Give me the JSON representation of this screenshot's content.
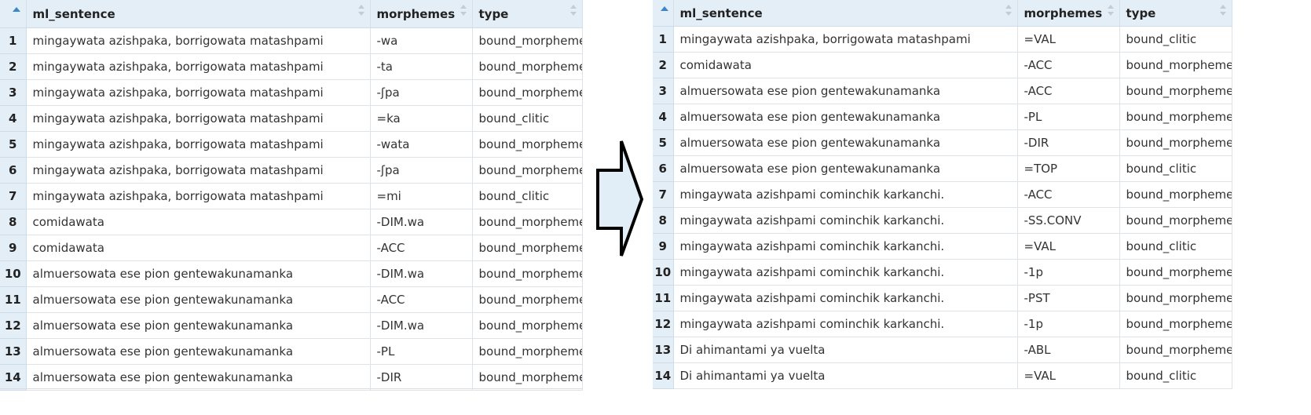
{
  "left_table": {
    "columns": [
      "ml_sentence",
      "morphemes",
      "type"
    ],
    "rows": [
      {
        "n": "1",
        "sentence": "mingaywata azishpaka, borrigowata matashpami",
        "morpheme": "-wa",
        "type": "bound_morpheme"
      },
      {
        "n": "2",
        "sentence": "mingaywata azishpaka, borrigowata matashpami",
        "morpheme": "-ta",
        "type": "bound_morpheme"
      },
      {
        "n": "3",
        "sentence": "mingaywata azishpaka, borrigowata matashpami",
        "morpheme": "-ʃpa",
        "type": "bound_morpheme"
      },
      {
        "n": "4",
        "sentence": "mingaywata azishpaka, borrigowata matashpami",
        "morpheme": "=ka",
        "type": "bound_clitic"
      },
      {
        "n": "5",
        "sentence": "mingaywata azishpaka, borrigowata matashpami",
        "morpheme": "-wata",
        "type": "bound_morpheme"
      },
      {
        "n": "6",
        "sentence": "mingaywata azishpaka, borrigowata matashpami",
        "morpheme": "-ʃpa",
        "type": "bound_morpheme"
      },
      {
        "n": "7",
        "sentence": "mingaywata azishpaka, borrigowata matashpami",
        "morpheme": "=mi",
        "type": "bound_clitic"
      },
      {
        "n": "8",
        "sentence": "comidawata",
        "morpheme": "-DIM.wa",
        "type": "bound_morpheme"
      },
      {
        "n": "9",
        "sentence": "comidawata",
        "morpheme": "-ACC",
        "type": "bound_morpheme"
      },
      {
        "n": "10",
        "sentence": "almuersowata ese pion gentewakunamanka",
        "morpheme": "-DIM.wa",
        "type": "bound_morpheme"
      },
      {
        "n": "11",
        "sentence": "almuersowata ese pion gentewakunamanka",
        "morpheme": "-ACC",
        "type": "bound_morpheme"
      },
      {
        "n": "12",
        "sentence": "almuersowata ese pion gentewakunamanka",
        "morpheme": "-DIM.wa",
        "type": "bound_morpheme"
      },
      {
        "n": "13",
        "sentence": "almuersowata ese pion gentewakunamanka",
        "morpheme": "-PL",
        "type": "bound_morpheme"
      },
      {
        "n": "14",
        "sentence": "almuersowata ese pion gentewakunamanka",
        "morpheme": "-DIR",
        "type": "bound_morpheme"
      }
    ]
  },
  "right_table": {
    "columns": [
      "ml_sentence",
      "morphemes",
      "type"
    ],
    "rows": [
      {
        "n": "1",
        "sentence": "mingaywata azishpaka, borrigowata matashpami",
        "morpheme": "=VAL",
        "type": "bound_clitic"
      },
      {
        "n": "2",
        "sentence": "comidawata",
        "morpheme": "-ACC",
        "type": "bound_morpheme"
      },
      {
        "n": "3",
        "sentence": "almuersowata ese pion gentewakunamanka",
        "morpheme": "-ACC",
        "type": "bound_morpheme"
      },
      {
        "n": "4",
        "sentence": "almuersowata ese pion gentewakunamanka",
        "morpheme": "-PL",
        "type": "bound_morpheme"
      },
      {
        "n": "5",
        "sentence": "almuersowata ese pion gentewakunamanka",
        "morpheme": "-DIR",
        "type": "bound_morpheme"
      },
      {
        "n": "6",
        "sentence": "almuersowata ese pion gentewakunamanka",
        "morpheme": "=TOP",
        "type": "bound_clitic"
      },
      {
        "n": "7",
        "sentence": "mingaywata azishpami cominchik karkanchi.",
        "morpheme": "-ACC",
        "type": "bound_morpheme"
      },
      {
        "n": "8",
        "sentence": "mingaywata azishpami cominchik karkanchi.",
        "morpheme": "-SS.CONV",
        "type": "bound_morpheme"
      },
      {
        "n": "9",
        "sentence": "mingaywata azishpami cominchik karkanchi.",
        "morpheme": "=VAL",
        "type": "bound_clitic"
      },
      {
        "n": "10",
        "sentence": "mingaywata azishpami cominchik karkanchi.",
        "morpheme": "-1p",
        "type": "bound_morpheme"
      },
      {
        "n": "11",
        "sentence": "mingaywata azishpami cominchik karkanchi.",
        "morpheme": "-PST",
        "type": "bound_morpheme"
      },
      {
        "n": "12",
        "sentence": "mingaywata azishpami cominchik karkanchi.",
        "morpheme": "-1p",
        "type": "bound_morpheme"
      },
      {
        "n": "13",
        "sentence": "Di ahimantami ya vuelta",
        "morpheme": "-ABL",
        "type": "bound_morpheme"
      },
      {
        "n": "14",
        "sentence": "Di ahimantami ya vuelta",
        "morpheme": "=VAL",
        "type": "bound_clitic"
      }
    ]
  },
  "arrow": {
    "icon": "right-arrow-icon",
    "fill": "#e2eef7",
    "stroke": "#000000"
  }
}
